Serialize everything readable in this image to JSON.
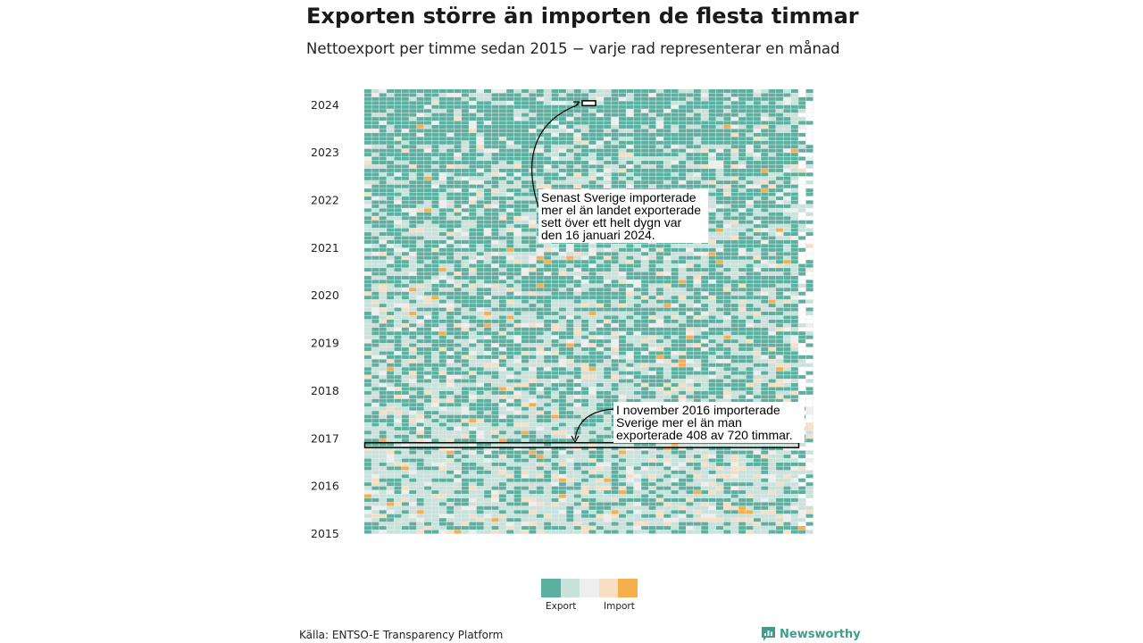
{
  "title": "Exporten större än importen de flesta timmar",
  "subtitle": "Nettoexport per timme sedan 2015 − varje rad representerar en månad",
  "source": "Källa: ENTSO-E Transparency Platform",
  "brand": "Newsworthy",
  "colors": {
    "export_strong": "#5bb0a0",
    "export_light": "#c9e2dc",
    "neutral": "#eeeeee",
    "import_light": "#f6dfc2",
    "import_strong": "#f7ae4c",
    "brand": "#3f9e8a"
  },
  "legend": {
    "export_label": "Export",
    "import_label": "Import",
    "swatches": [
      "#5bb0a0",
      "#c9e2dc",
      "#eeeeee",
      "#f6dfc2",
      "#f7ae4c"
    ]
  },
  "annotations": {
    "jan2024": "Senast Sverige importerade mer el än landet exporterade sett över ett helt dygn var den 16 januari 2024.",
    "nov2016": "I november 2016 importerade Sverige mer el än man exporterade 408 av 720 timmar."
  },
  "chart_data": {
    "type": "heatmap",
    "title": "Exporten större än importen de flesta timmar",
    "subtitle": "Nettoexport per timme sedan 2015 − varje rad representerar en månad",
    "y_ticks": [
      "2024",
      "2023",
      "2022",
      "2021",
      "2020",
      "2019",
      "2018",
      "2017",
      "2016",
      "2015"
    ],
    "rows_per_year": 12,
    "start_year": 2015,
    "end_label": "2024",
    "columns": "hours of month (up to 744)",
    "categories": [
      "Export",
      "",
      "",
      "",
      "Import"
    ],
    "highlighted_rows": [
      "2016-11",
      "2024-01"
    ],
    "nov2016_import_hours": 408,
    "nov2016_total_hours": 720
  }
}
